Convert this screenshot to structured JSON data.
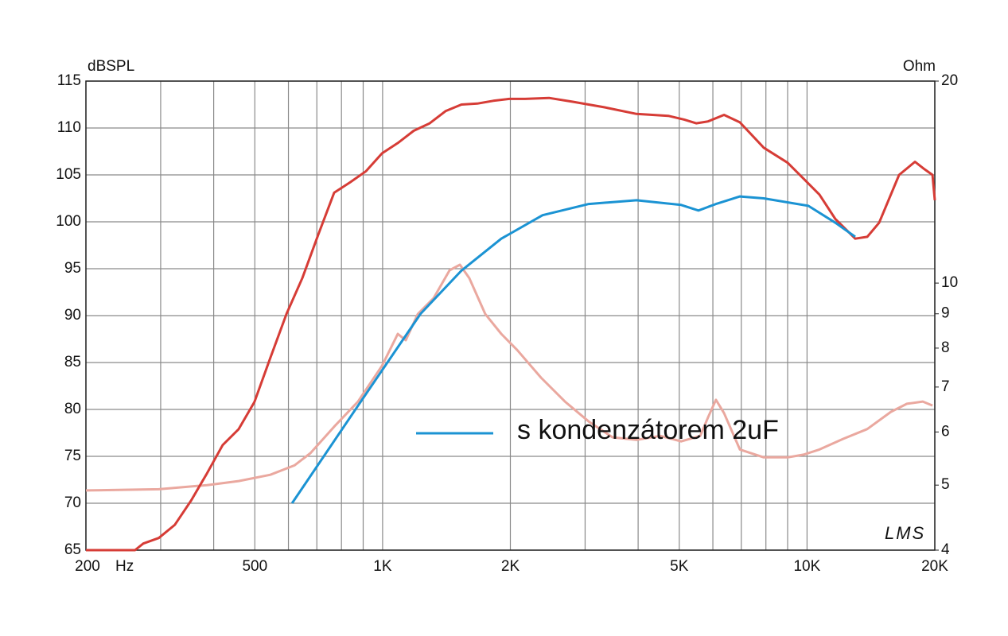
{
  "chart_data": {
    "type": "line",
    "y_label": "dBSPL",
    "y2_label": "Ohm",
    "x_unit": "Hz",
    "logo": "LMS",
    "xscale": "log",
    "y2scale": "log",
    "grid": true,
    "xlim": [
      200,
      20000
    ],
    "xticks": [
      {
        "value": 200,
        "label": "200"
      },
      500,
      {
        "value": 1000,
        "label": "1K"
      },
      {
        "value": 2000,
        "label": "2K"
      },
      {
        "value": 5000,
        "label": "5K"
      },
      {
        "value": 10000,
        "label": "10K"
      },
      {
        "value": 20000,
        "label": "20K"
      }
    ],
    "xgrid": [
      300,
      400,
      600,
      700,
      800,
      900,
      3000,
      4000,
      6000,
      7000,
      8000,
      9000
    ],
    "ylim": [
      65,
      115
    ],
    "yticks": [
      65,
      70,
      75,
      80,
      85,
      90,
      95,
      100,
      105,
      110,
      115
    ],
    "y2lim": [
      4,
      20
    ],
    "y2ticks": [
      4,
      5,
      6,
      7,
      8,
      9,
      10,
      20
    ],
    "series": [
      {
        "color": "#d63c36",
        "x": [
          200,
          261,
          273,
          297,
          324,
          354,
          386,
          420,
          458,
          499,
          544,
          594,
          647,
          705,
          769,
          838,
          914,
          997,
          1086,
          1184,
          1291,
          1407,
          1534,
          1672,
          1823,
          1987,
          2166,
          2467,
          2807,
          3336,
          3965,
          4711,
          5136,
          5482,
          5846,
          6375,
          6948,
          7907,
          9000,
          9810,
          10695,
          11660,
          12992,
          13862,
          14786,
          16474,
          17960,
          18914,
          19750,
          20000
        ],
        "values": [
          65,
          65,
          65.7,
          66.3,
          67.7,
          70.3,
          73.2,
          76.2,
          77.9,
          80.8,
          85.5,
          90.2,
          94.0,
          98.6,
          103.1,
          104.2,
          105.4,
          107.3,
          108.4,
          109.7,
          110.5,
          111.8,
          112.5,
          112.6,
          112.9,
          113.1,
          113.1,
          113.2,
          112.8,
          112.2,
          111.5,
          111.3,
          110.9,
          110.5,
          110.7,
          111.4,
          110.6,
          107.9,
          106.3,
          104.6,
          102.9,
          100.3,
          98.2,
          98.4,
          99.9,
          105.0,
          106.4,
          105.6,
          105.0,
          102.3
        ]
      },
      {
        "name": "s kondenzátorem 2uF",
        "color": "#1b93d3",
        "x": [
          612,
          875,
          1229,
          1534,
          1904,
          2382,
          3059,
          3965,
          5051,
          5548,
          6101,
          6948,
          7907,
          10070,
          11660,
          12992
        ],
        "values": [
          70.0,
          80.4,
          90.2,
          94.8,
          98.2,
          100.7,
          101.9,
          102.3,
          101.8,
          101.2,
          101.9,
          102.7,
          102.5,
          101.7,
          99.9,
          98.4
        ]
      },
      {
        "color": "#eaa89f",
        "axis": "y2",
        "x": [
          200,
          297,
          386,
          458,
          544,
          620,
          676,
          769,
          875,
          997,
          1086,
          1134,
          1210,
          1319,
          1438,
          1521,
          1601,
          1746,
          1904,
          2075,
          2362,
          2689,
          3059,
          3483,
          3965,
          4513,
          5051,
          5600,
          5846,
          6101,
          6375,
          6948,
          7907,
          9000,
          9810,
          10695,
          12170,
          13862,
          15770,
          17190,
          18740,
          19750
        ],
        "values": [
          4.91,
          4.93,
          5.0,
          5.07,
          5.18,
          5.35,
          5.58,
          6.11,
          6.66,
          7.53,
          8.4,
          8.22,
          8.99,
          9.5,
          10.45,
          10.65,
          10.17,
          8.99,
          8.4,
          7.95,
          7.23,
          6.66,
          6.22,
          5.89,
          5.84,
          5.92,
          5.81,
          5.92,
          6.31,
          6.7,
          6.4,
          5.65,
          5.5,
          5.5,
          5.55,
          5.65,
          5.86,
          6.06,
          6.43,
          6.61,
          6.66,
          6.57
        ]
      }
    ]
  }
}
